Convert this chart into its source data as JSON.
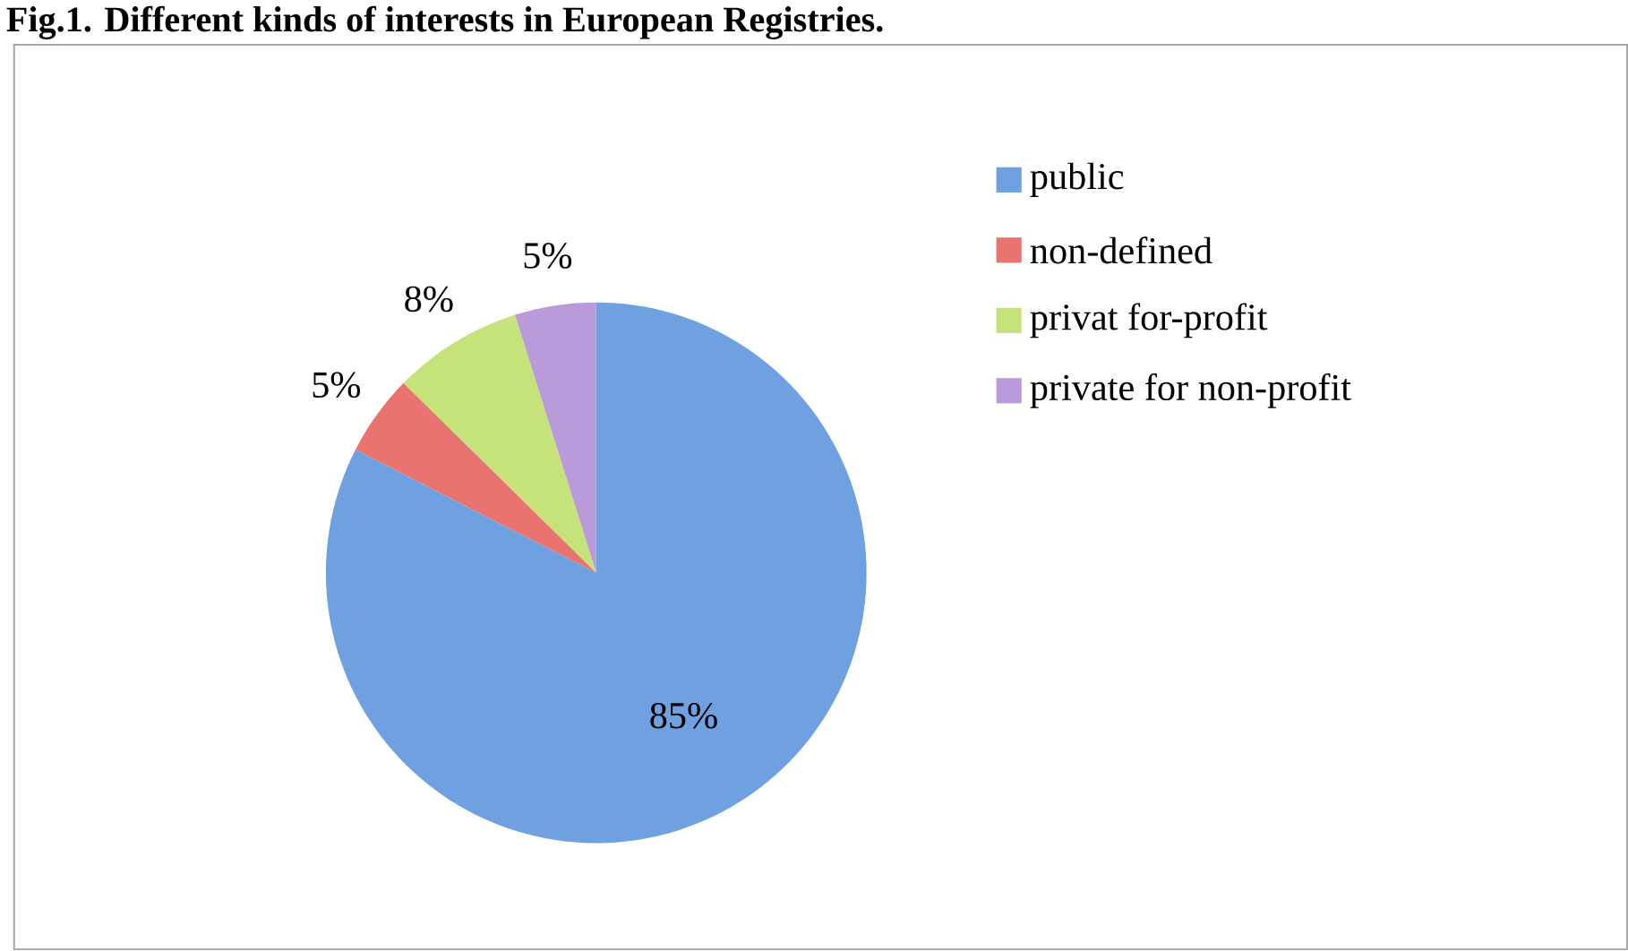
{
  "chart_data": {
    "type": "pie",
    "title": "Fig.1. Different kinds of interests in European Registries.",
    "categories": [
      "public",
      "non-defined",
      "privat for-profit",
      "private for non-profit"
    ],
    "values": [
      85,
      5,
      8,
      5
    ],
    "value_labels": [
      "85%",
      "5%",
      "8%",
      "5%"
    ],
    "colors": [
      "#6fa0e0",
      "#e8736f",
      "#c6e27a",
      "#b89bd8"
    ],
    "legend": "right"
  }
}
